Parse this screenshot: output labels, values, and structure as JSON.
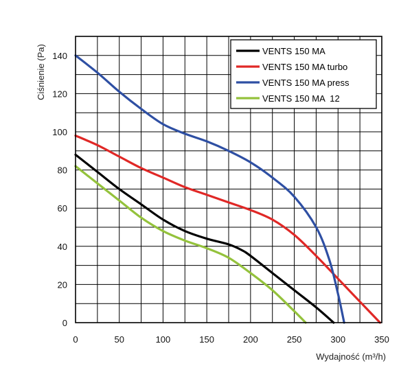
{
  "chart_data": {
    "type": "line",
    "title": "",
    "xlabel": "Wydajność (m³/h)",
    "ylabel": "Ciśnienie (Pa)",
    "xlim": [
      0,
      350
    ],
    "ylim": [
      0,
      150
    ],
    "x_ticks": [
      0,
      50,
      100,
      150,
      200,
      250,
      300,
      350
    ],
    "y_ticks": [
      0,
      20,
      40,
      60,
      80,
      100,
      120,
      140
    ],
    "x_minor_step": 25,
    "y_minor_step": 10,
    "grid": true,
    "legend_position": "top-right",
    "series": [
      {
        "name": "VENTS 150 MA",
        "color": "#000000",
        "x": [
          0,
          25,
          50,
          75,
          100,
          125,
          150,
          175,
          190,
          200,
          225,
          250,
          275,
          295
        ],
        "y": [
          88,
          79,
          70,
          62,
          54,
          48,
          44,
          41,
          38,
          35,
          26,
          17,
          8,
          0
        ]
      },
      {
        "name": "VENTS 150 MA turbo",
        "color": "#e02826",
        "x": [
          0,
          25,
          50,
          75,
          100,
          125,
          150,
          175,
          200,
          225,
          250,
          275,
          300,
          325,
          348
        ],
        "y": [
          98,
          93,
          87,
          81,
          76,
          71,
          67,
          63,
          59,
          54,
          46,
          35,
          23,
          11,
          0
        ]
      },
      {
        "name": "VENTS 150 MA press",
        "color": "#2e4fa3",
        "x": [
          0,
          25,
          50,
          75,
          100,
          125,
          150,
          175,
          200,
          225,
          250,
          275,
          290,
          300,
          307
        ],
        "y": [
          140,
          131,
          121,
          112,
          104,
          99,
          95,
          90,
          84,
          76,
          66,
          50,
          33,
          15,
          0
        ]
      },
      {
        "name": "VENTS 150 MA  12",
        "color": "#94c23c",
        "x": [
          0,
          25,
          50,
          75,
          100,
          125,
          150,
          175,
          200,
          225,
          250,
          263
        ],
        "y": [
          82,
          73,
          64,
          55,
          48,
          43,
          39,
          34,
          26,
          17,
          6,
          0
        ]
      }
    ]
  }
}
